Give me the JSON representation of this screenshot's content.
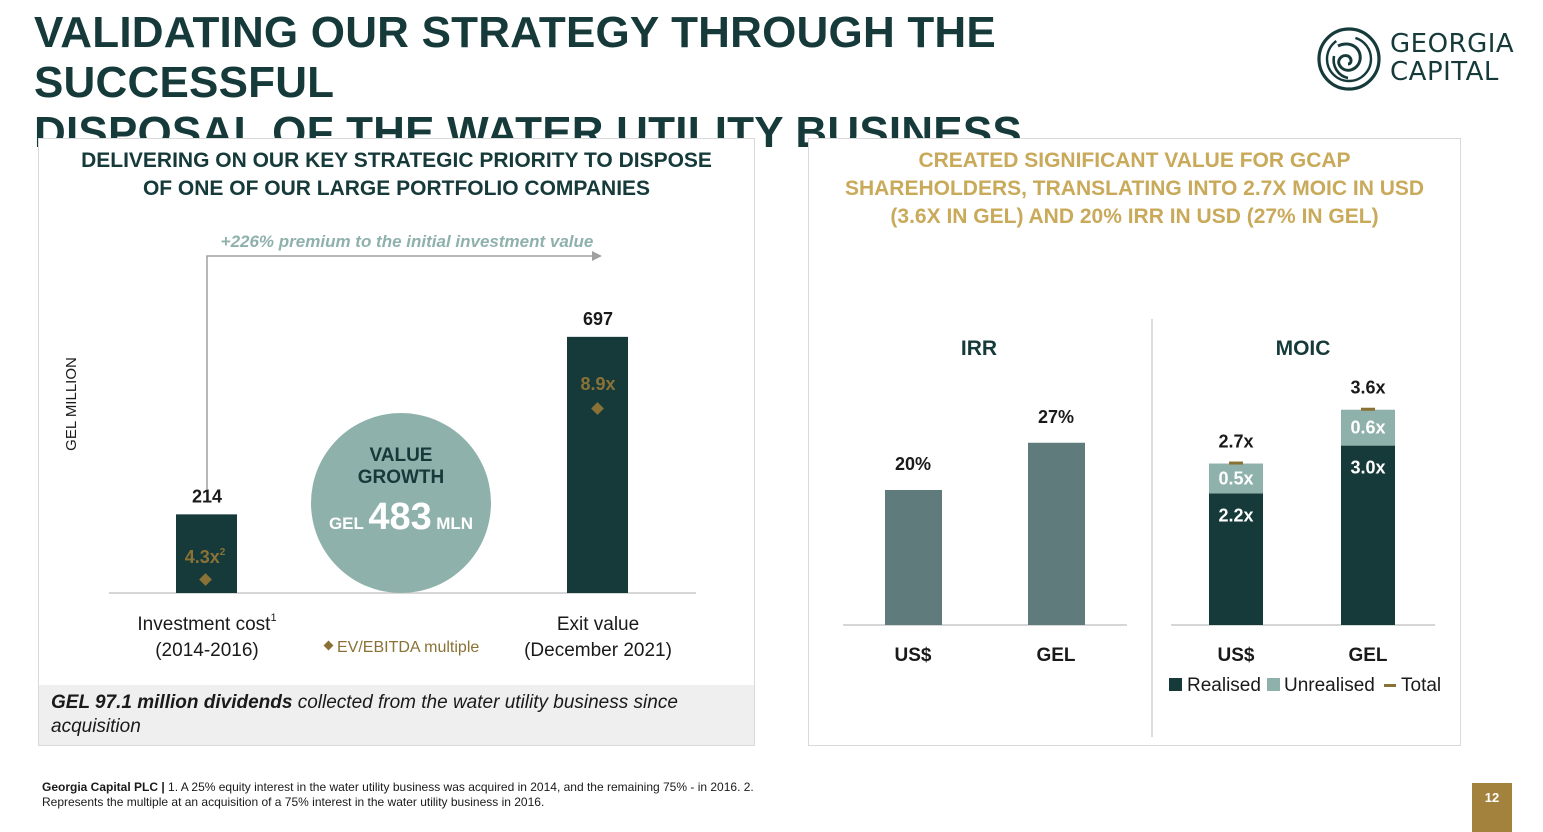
{
  "title_line1": "VALIDATING OUR STRATEGY THROUGH THE SUCCESSFUL",
  "title_line2": "DISPOSAL OF THE WATER UTILITY BUSINESS",
  "logo": {
    "line1": "GEORGIA",
    "line2": "CAPITAL"
  },
  "colors": {
    "dark": "#163a3a",
    "gold": "#8a7236",
    "teal_grey": "#5f7b7c",
    "mint": "#8fb1ab",
    "heading_gold": "#c9a95a"
  },
  "left_panel": {
    "heading_line1": "DELIVERING ON OUR KEY STRATEGIC PRIORITY TO DISPOSE",
    "heading_line2": "OF ONE OF OUR LARGE PORTFOLIO COMPANIES",
    "premium_label": "+226% premium to the initial investment value",
    "value_growth": {
      "line1": "VALUE",
      "line2": "GROWTH",
      "prefix": "GEL",
      "amount": "483",
      "suffix": "MLN"
    },
    "legend_label": "EV/EBITDA multiple",
    "note_bold": "GEL 97.1 million dividends",
    "note_rest": " collected from the water utility business since acquisition"
  },
  "right_panel": {
    "heading_line1": "CREATED SIGNIFICANT VALUE FOR GCAP",
    "heading_line2": "SHAREHOLDERS, TRANSLATING INTO 2.7X MOIC IN USD",
    "heading_line3": "(3.6X IN GEL) AND 20% IRR IN USD (27% IN GEL)"
  },
  "chart_data": [
    {
      "type": "bar",
      "ylabel": "GEL MILLION",
      "categories": [
        "Investment cost",
        "Exit value"
      ],
      "category_notes": [
        "1",
        ""
      ],
      "category_sublabels": [
        "(2014-2016)",
        "(December 2021)"
      ],
      "values": [
        214,
        697
      ],
      "value_labels": [
        "214",
        "697"
      ],
      "ev_ebitda_multiples": [
        "4.3x",
        "8.9x"
      ],
      "multiple_notes": [
        "2",
        ""
      ],
      "ylim": [
        0,
        800
      ]
    },
    {
      "type": "bar",
      "title": "IRR",
      "categories": [
        "US$",
        "GEL"
      ],
      "values": [
        20,
        27
      ],
      "value_labels": [
        "20%",
        "27%"
      ],
      "ylim": [
        0,
        40
      ]
    },
    {
      "type": "bar",
      "stacked": true,
      "title": "MOIC",
      "categories": [
        "US$",
        "GEL"
      ],
      "series": [
        {
          "name": "Realised",
          "values": [
            2.2,
            3.0
          ],
          "labels": [
            "2.2x",
            "3.0x"
          ]
        },
        {
          "name": "Unrealised",
          "values": [
            0.5,
            0.6
          ],
          "labels": [
            "0.5x",
            "0.6x"
          ]
        }
      ],
      "totals": [
        2.7,
        3.6
      ],
      "total_labels": [
        "2.7x",
        "3.6x"
      ],
      "legend": [
        "Realised",
        "Unrealised",
        "Total"
      ],
      "ylim": [
        0,
        5
      ]
    }
  ],
  "footer": {
    "company": "Georgia Capital PLC |",
    "text": " 1. A 25% equity interest in the water utility business was acquired in 2014, and the remaining 75% - in 2016. 2. Represents the multiple at an acquisition of a 75% interest in the water utility business in 2016."
  },
  "page_number": "12"
}
